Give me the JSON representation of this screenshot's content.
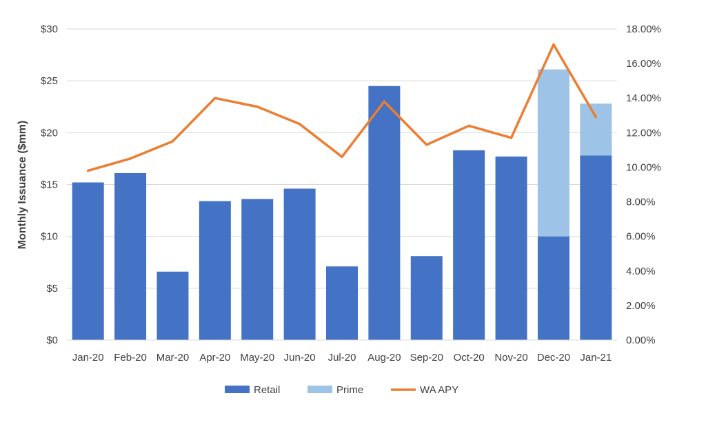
{
  "chart_data": {
    "type": "bar",
    "stacked": true,
    "categories": [
      "Jan-20",
      "Feb-20",
      "Mar-20",
      "Apr-20",
      "May-20",
      "Jun-20",
      "Jul-20",
      "Aug-20",
      "Sep-20",
      "Oct-20",
      "Nov-20",
      "Dec-20",
      "Jan-21"
    ],
    "series": [
      {
        "name": "Retail",
        "type": "bar",
        "axis": "left",
        "color": "#4472c4",
        "values": [
          15.2,
          16.1,
          6.6,
          13.4,
          13.6,
          14.6,
          7.1,
          24.5,
          8.1,
          18.3,
          17.7,
          10.0,
          17.8
        ]
      },
      {
        "name": "Prime",
        "type": "bar",
        "axis": "left",
        "color": "#9dc3e6",
        "values": [
          0,
          0,
          0,
          0,
          0,
          0,
          0,
          0,
          0,
          0,
          0,
          16.1,
          5.0
        ]
      },
      {
        "name": "WA APY",
        "type": "line",
        "axis": "right",
        "color": "#ed7d31",
        "values": [
          9.8,
          10.5,
          11.5,
          14.0,
          13.5,
          12.5,
          10.6,
          13.8,
          11.3,
          12.4,
          11.7,
          17.1,
          12.9
        ]
      }
    ],
    "y_left": {
      "label": "Monthly Issuance ($mm)",
      "min": 0,
      "max": 30,
      "ticks": [
        "$0",
        "$5",
        "$10",
        "$15",
        "$20",
        "$25",
        "$30"
      ]
    },
    "y_right": {
      "min": 0,
      "max": 18,
      "ticks": [
        "0.00%",
        "2.00%",
        "4.00%",
        "6.00%",
        "8.00%",
        "10.00%",
        "12.00%",
        "14.00%",
        "16.00%",
        "18.00%"
      ]
    },
    "grid": true,
    "legend_position": "bottom"
  }
}
